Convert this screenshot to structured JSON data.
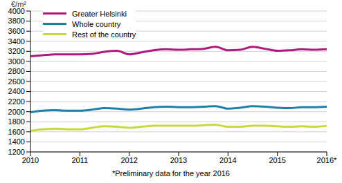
{
  "chart_data": {
    "type": "line",
    "y_label": "€/m²",
    "note": "*Preliminary data for the year 2016",
    "categories": [
      "2010",
      null,
      null,
      null,
      "2011",
      null,
      null,
      null,
      "2012",
      null,
      null,
      null,
      "2013",
      null,
      null,
      null,
      "2014",
      null,
      null,
      null,
      "2015",
      null,
      null,
      null,
      "2016*"
    ],
    "series": [
      {
        "name": "Greater Helsinki",
        "color": "#b0187e",
        "values": [
          3100,
          3120,
          3140,
          3140,
          3140,
          3150,
          3190,
          3210,
          3140,
          3180,
          3220,
          3240,
          3230,
          3240,
          3250,
          3290,
          3220,
          3230,
          3290,
          3250,
          3210,
          3220,
          3240,
          3230,
          3240
        ]
      },
      {
        "name": "Whole country",
        "color": "#1e7fa8",
        "values": [
          1990,
          2020,
          2030,
          2020,
          2020,
          2040,
          2070,
          2060,
          2040,
          2060,
          2090,
          2100,
          2090,
          2090,
          2100,
          2110,
          2060,
          2080,
          2110,
          2100,
          2080,
          2070,
          2090,
          2090,
          2100
        ]
      },
      {
        "name": "Rest of the country",
        "color": "#c6d93e",
        "values": [
          1620,
          1650,
          1660,
          1650,
          1650,
          1680,
          1710,
          1700,
          1680,
          1700,
          1720,
          1720,
          1720,
          1720,
          1730,
          1740,
          1700,
          1700,
          1720,
          1720,
          1710,
          1700,
          1710,
          1700,
          1720
        ]
      }
    ],
    "ylim": [
      1200,
      4000
    ],
    "yticks": [
      1200,
      1400,
      1600,
      1800,
      2000,
      2200,
      2400,
      2600,
      2800,
      3000,
      3200,
      3400,
      3600,
      3800,
      4000
    ],
    "grid": true,
    "legend": "top-left"
  }
}
